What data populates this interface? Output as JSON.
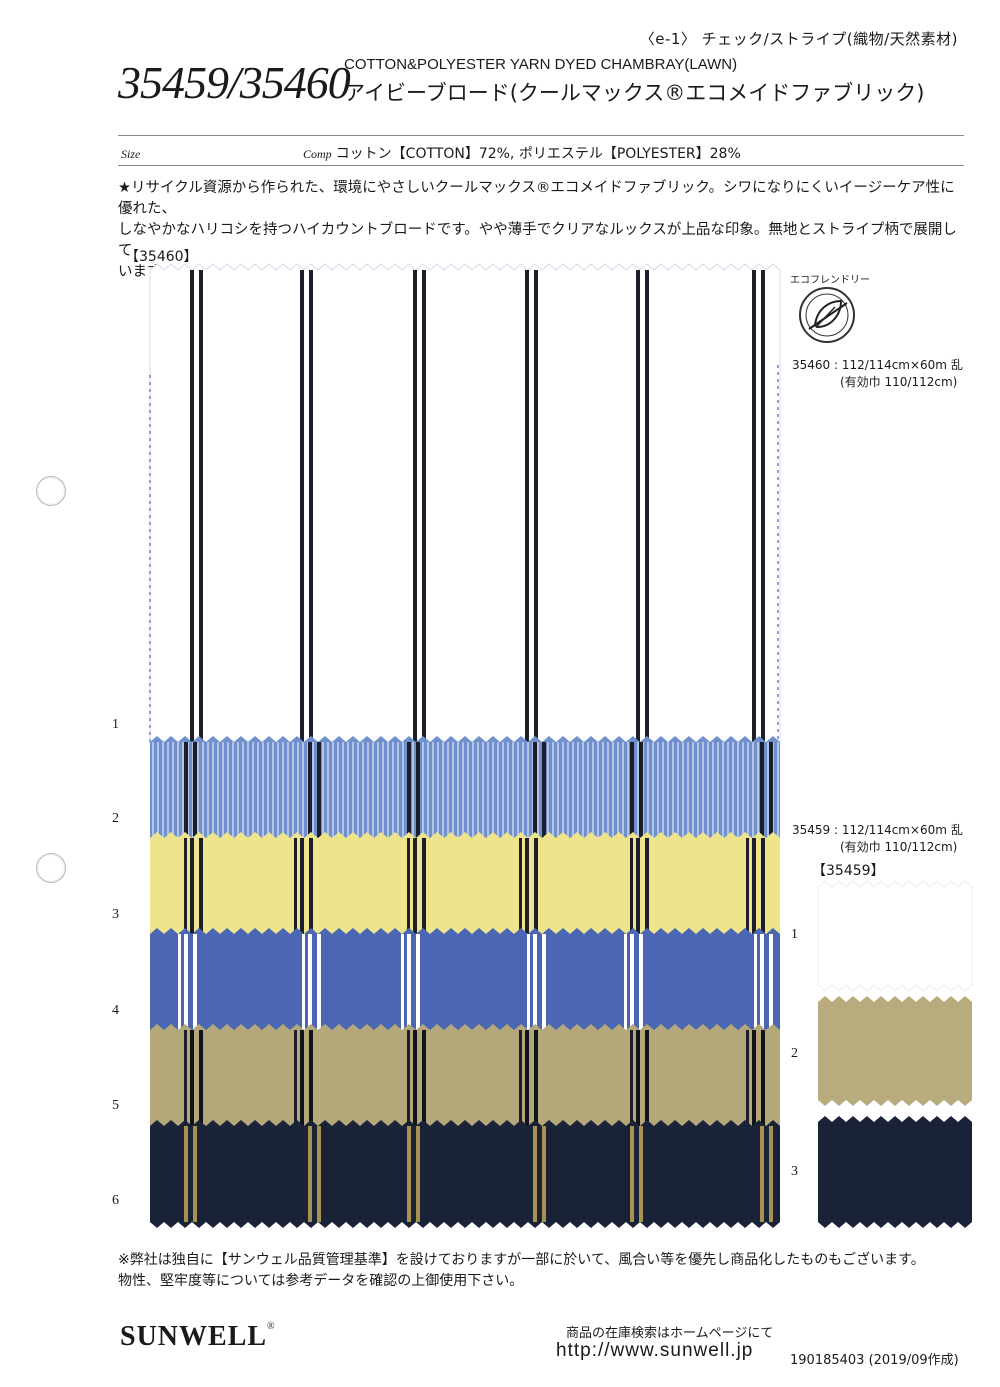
{
  "header": {
    "category": "〈e-1〉 チェック/ストライプ(織物/天然素材)",
    "codes": "35459/35460",
    "title_en": "COTTON&POLYESTER YARN DYED CHAMBRAY(LAWN)",
    "title_jp": "アイビーブロード(クールマックス®エコメイドファブリック)"
  },
  "spec_row": {
    "size_label": "Size",
    "comp_label": "Comp",
    "composition": "コットン【COTTON】72%, ポリエステル【POLYESTER】28%"
  },
  "description": [
    "★リサイクル資源から作られた、環境にやさしいクールマックス®エコメイドファブリック。シワになりにくいイージーケア性に優れた、",
    "しなやかなハリコシを持つハイカウントブロードです。やや薄手でクリアなルックスが上品な印象。無地とストライプ柄で展開して",
    "います。"
  ],
  "product_35460": {
    "label": "【35460】",
    "spec_line1": "35460 : 112/114cm×60m 乱",
    "spec_line2": "(有効巾 110/112cm)",
    "row_numbers": [
      "1",
      "2",
      "3",
      "4",
      "5",
      "6"
    ],
    "swatch_colors": [
      "#ffffff",
      "#6f8fcd",
      "#eee48c",
      "#4b66b3",
      "#b4a87b",
      "#1a2238"
    ],
    "stripe_colors": [
      "#1c1f2a",
      "#1c1f2a",
      "#1c1f2a",
      "#ffffff",
      "#101318",
      "#a8924f"
    ]
  },
  "eco": {
    "label": "エコフレンドリー",
    "icon": "leaf-icon"
  },
  "product_35459": {
    "label": "【35459】",
    "spec_line1": "35459 : 112/114cm×60m 乱",
    "spec_line2": "(有効巾 110/112cm)",
    "row_numbers": [
      "1",
      "2",
      "3"
    ],
    "swatch_colors": [
      "#ffffff",
      "#b8ab7e",
      "#1a2238"
    ]
  },
  "footer": {
    "note_line1": "※弊社は独自に【サンウェル品質管理基準】を設けておりますが一部に於いて、風合い等を優先し商品化したものもございます。",
    "note_line2": "物性、堅牢度等については参考データを確認の上御使用下さい。",
    "brand": "SUNWELL",
    "brand_mark": "®",
    "stock_text": "商品の在庫検索はホームページにて",
    "url": "http://www.sunwell.jp",
    "doc_number": "190185403 (2019/09作成)"
  }
}
